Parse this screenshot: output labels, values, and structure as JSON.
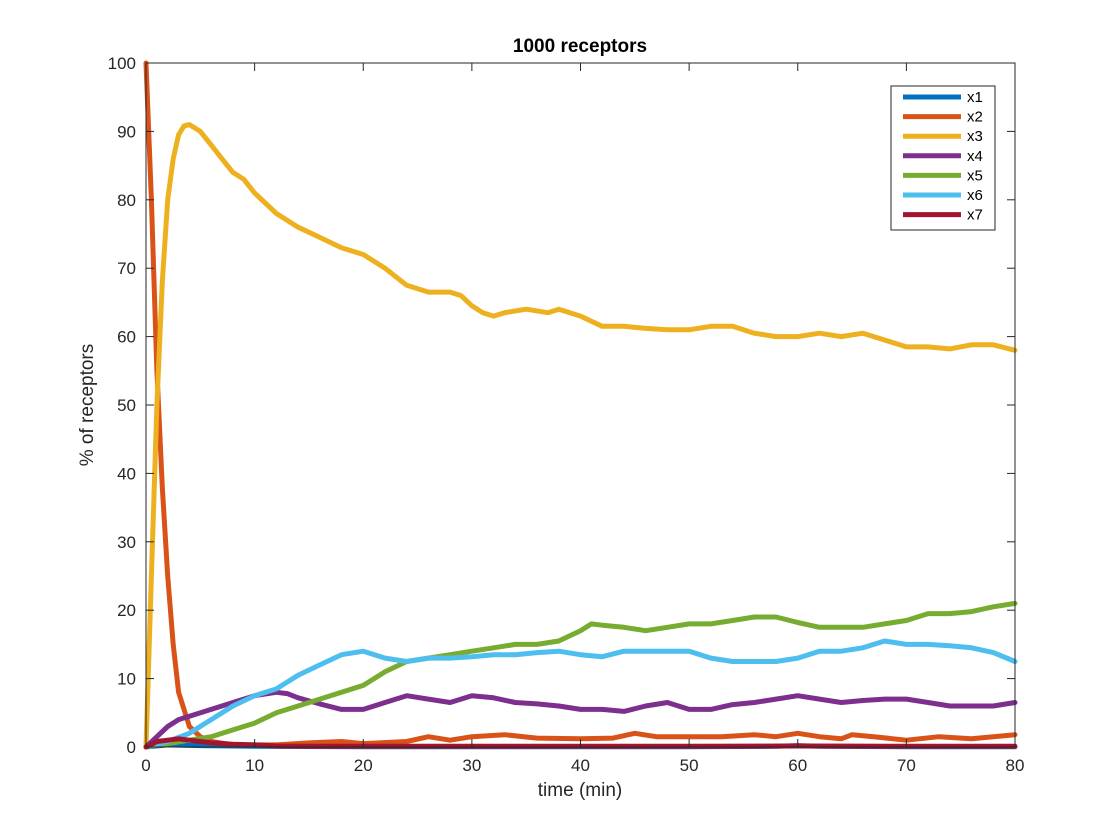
{
  "chart_data": {
    "type": "line",
    "title": "1000 receptors",
    "xlabel": "time (min)",
    "ylabel": "% of receptors",
    "xlim": [
      0,
      80
    ],
    "ylim": [
      0,
      100
    ],
    "xticks": [
      "0",
      "10",
      "20",
      "30",
      "40",
      "50",
      "60",
      "70",
      "80"
    ],
    "yticks": [
      "0",
      "10",
      "20",
      "30",
      "40",
      "50",
      "60",
      "70",
      "80",
      "90",
      "100"
    ],
    "grid": false,
    "legend_position": "top-right",
    "series": [
      {
        "name": "x1",
        "color": "#0072BD",
        "points": [
          [
            0,
            0
          ],
          [
            2,
            0.3
          ],
          [
            5,
            0.2
          ],
          [
            10,
            0.1
          ],
          [
            20,
            0.05
          ],
          [
            30,
            0.05
          ],
          [
            40,
            0.05
          ],
          [
            50,
            0.05
          ],
          [
            58,
            0.1
          ],
          [
            60,
            0.2
          ],
          [
            62,
            0.1
          ],
          [
            70,
            0.05
          ],
          [
            80,
            0.05
          ]
        ]
      },
      {
        "name": "x2",
        "color": "#D95319",
        "points": [
          [
            0,
            100
          ],
          [
            0.5,
            80
          ],
          [
            1,
            55
          ],
          [
            1.5,
            38
          ],
          [
            2,
            25
          ],
          [
            2.5,
            15
          ],
          [
            3,
            8
          ],
          [
            4,
            3
          ],
          [
            5,
            1.5
          ],
          [
            6,
            0.8
          ],
          [
            8,
            0.3
          ],
          [
            10,
            0.3
          ],
          [
            12,
            0.3
          ],
          [
            15,
            0.6
          ],
          [
            18,
            0.8
          ],
          [
            20,
            0.5
          ],
          [
            24,
            0.8
          ],
          [
            26,
            1.5
          ],
          [
            28,
            1
          ],
          [
            30,
            1.5
          ],
          [
            33,
            1.8
          ],
          [
            36,
            1.3
          ],
          [
            40,
            1.2
          ],
          [
            43,
            1.3
          ],
          [
            45,
            2
          ],
          [
            47,
            1.5
          ],
          [
            50,
            1.5
          ],
          [
            53,
            1.5
          ],
          [
            56,
            1.8
          ],
          [
            58,
            1.5
          ],
          [
            60,
            2
          ],
          [
            62,
            1.5
          ],
          [
            64,
            1.2
          ],
          [
            65,
            1.8
          ],
          [
            67,
            1.5
          ],
          [
            70,
            1
          ],
          [
            73,
            1.5
          ],
          [
            76,
            1.2
          ],
          [
            78,
            1.5
          ],
          [
            80,
            1.8
          ]
        ]
      },
      {
        "name": "x3",
        "color": "#EDB120",
        "points": [
          [
            0,
            0
          ],
          [
            0.5,
            25
          ],
          [
            1,
            50
          ],
          [
            1.5,
            68
          ],
          [
            2,
            80
          ],
          [
            2.5,
            86
          ],
          [
            3,
            89.5
          ],
          [
            3.5,
            90.8
          ],
          [
            4,
            91
          ],
          [
            5,
            90
          ],
          [
            6,
            88
          ],
          [
            7,
            86
          ],
          [
            8,
            84
          ],
          [
            9,
            83
          ],
          [
            10,
            81
          ],
          [
            12,
            78
          ],
          [
            14,
            76
          ],
          [
            16,
            74.5
          ],
          [
            18,
            73
          ],
          [
            20,
            72
          ],
          [
            22,
            70
          ],
          [
            24,
            67.5
          ],
          [
            26,
            66.5
          ],
          [
            28,
            66.5
          ],
          [
            29,
            66
          ],
          [
            30,
            64.5
          ],
          [
            31,
            63.5
          ],
          [
            32,
            63
          ],
          [
            33,
            63.5
          ],
          [
            35,
            64
          ],
          [
            37,
            63.5
          ],
          [
            38,
            64
          ],
          [
            40,
            63
          ],
          [
            42,
            61.5
          ],
          [
            44,
            61.5
          ],
          [
            46,
            61.2
          ],
          [
            48,
            61
          ],
          [
            50,
            61
          ],
          [
            52,
            61.5
          ],
          [
            54,
            61.5
          ],
          [
            56,
            60.5
          ],
          [
            58,
            60
          ],
          [
            60,
            60
          ],
          [
            62,
            60.5
          ],
          [
            64,
            60
          ],
          [
            66,
            60.5
          ],
          [
            68,
            59.5
          ],
          [
            70,
            58.5
          ],
          [
            72,
            58.5
          ],
          [
            74,
            58.2
          ],
          [
            76,
            58.8
          ],
          [
            78,
            58.8
          ],
          [
            80,
            58
          ]
        ]
      },
      {
        "name": "x4",
        "color": "#7E2F8E",
        "points": [
          [
            0,
            0
          ],
          [
            1,
            1.5
          ],
          [
            2,
            3
          ],
          [
            3,
            4
          ],
          [
            4,
            4.5
          ],
          [
            6,
            5.5
          ],
          [
            8,
            6.5
          ],
          [
            10,
            7.5
          ],
          [
            12,
            8
          ],
          [
            13,
            7.8
          ],
          [
            14,
            7.2
          ],
          [
            16,
            6.3
          ],
          [
            18,
            5.5
          ],
          [
            20,
            5.5
          ],
          [
            22,
            6.5
          ],
          [
            24,
            7.5
          ],
          [
            26,
            7
          ],
          [
            28,
            6.5
          ],
          [
            30,
            7.5
          ],
          [
            32,
            7.2
          ],
          [
            34,
            6.5
          ],
          [
            36,
            6.3
          ],
          [
            38,
            6
          ],
          [
            40,
            5.5
          ],
          [
            42,
            5.5
          ],
          [
            44,
            5.2
          ],
          [
            46,
            6
          ],
          [
            48,
            6.5
          ],
          [
            50,
            5.5
          ],
          [
            52,
            5.5
          ],
          [
            54,
            6.2
          ],
          [
            56,
            6.5
          ],
          [
            58,
            7
          ],
          [
            60,
            7.5
          ],
          [
            62,
            7
          ],
          [
            64,
            6.5
          ],
          [
            66,
            6.8
          ],
          [
            68,
            7
          ],
          [
            70,
            7
          ],
          [
            72,
            6.5
          ],
          [
            74,
            6
          ],
          [
            76,
            6
          ],
          [
            78,
            6
          ],
          [
            80,
            6.5
          ]
        ]
      },
      {
        "name": "x5",
        "color": "#77AC30",
        "points": [
          [
            0,
            0
          ],
          [
            2,
            0.5
          ],
          [
            4,
            1
          ],
          [
            6,
            1.5
          ],
          [
            8,
            2.5
          ],
          [
            10,
            3.5
          ],
          [
            12,
            5
          ],
          [
            14,
            6
          ],
          [
            16,
            7
          ],
          [
            18,
            8
          ],
          [
            20,
            9
          ],
          [
            22,
            11
          ],
          [
            24,
            12.5
          ],
          [
            26,
            13
          ],
          [
            28,
            13.5
          ],
          [
            30,
            14
          ],
          [
            32,
            14.5
          ],
          [
            34,
            15
          ],
          [
            36,
            15
          ],
          [
            38,
            15.5
          ],
          [
            40,
            17
          ],
          [
            41,
            18
          ],
          [
            42,
            17.8
          ],
          [
            44,
            17.5
          ],
          [
            46,
            17
          ],
          [
            48,
            17.5
          ],
          [
            50,
            18
          ],
          [
            52,
            18
          ],
          [
            54,
            18.5
          ],
          [
            56,
            19
          ],
          [
            58,
            19
          ],
          [
            60,
            18.2
          ],
          [
            62,
            17.5
          ],
          [
            64,
            17.5
          ],
          [
            66,
            17.5
          ],
          [
            68,
            18
          ],
          [
            70,
            18.5
          ],
          [
            72,
            19.5
          ],
          [
            74,
            19.5
          ],
          [
            76,
            19.8
          ],
          [
            78,
            20.5
          ],
          [
            80,
            21
          ]
        ]
      },
      {
        "name": "x6",
        "color": "#4DBEEE",
        "points": [
          [
            0,
            0
          ],
          [
            2,
            0.8
          ],
          [
            4,
            2
          ],
          [
            6,
            4
          ],
          [
            8,
            6
          ],
          [
            10,
            7.5
          ],
          [
            12,
            8.5
          ],
          [
            14,
            10.5
          ],
          [
            16,
            12
          ],
          [
            18,
            13.5
          ],
          [
            20,
            14
          ],
          [
            22,
            13
          ],
          [
            24,
            12.5
          ],
          [
            26,
            13
          ],
          [
            28,
            13
          ],
          [
            30,
            13.2
          ],
          [
            32,
            13.5
          ],
          [
            34,
            13.5
          ],
          [
            36,
            13.8
          ],
          [
            38,
            14
          ],
          [
            40,
            13.5
          ],
          [
            42,
            13.2
          ],
          [
            44,
            14
          ],
          [
            46,
            14
          ],
          [
            48,
            14
          ],
          [
            50,
            14
          ],
          [
            52,
            13
          ],
          [
            54,
            12.5
          ],
          [
            56,
            12.5
          ],
          [
            58,
            12.5
          ],
          [
            60,
            13
          ],
          [
            62,
            14
          ],
          [
            64,
            14
          ],
          [
            66,
            14.5
          ],
          [
            68,
            15.5
          ],
          [
            70,
            15
          ],
          [
            72,
            15
          ],
          [
            74,
            14.8
          ],
          [
            76,
            14.5
          ],
          [
            78,
            13.8
          ],
          [
            80,
            12.5
          ]
        ]
      },
      {
        "name": "x7",
        "color": "#A2142F",
        "points": [
          [
            0,
            0
          ],
          [
            1,
            0.8
          ],
          [
            2,
            1
          ],
          [
            3,
            1.2
          ],
          [
            4,
            1
          ],
          [
            5,
            0.8
          ],
          [
            6,
            0.6
          ],
          [
            8,
            0.4
          ],
          [
            10,
            0.3
          ],
          [
            12,
            0.15
          ],
          [
            15,
            0.1
          ],
          [
            20,
            0.1
          ],
          [
            30,
            0.1
          ],
          [
            40,
            0.1
          ],
          [
            50,
            0.1
          ],
          [
            60,
            0.15
          ],
          [
            70,
            0.1
          ],
          [
            80,
            0.1
          ]
        ]
      }
    ]
  }
}
